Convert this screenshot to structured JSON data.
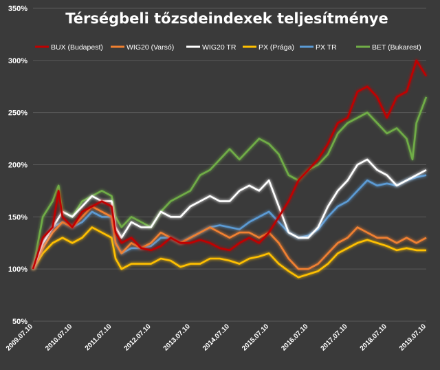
{
  "chart_data": {
    "type": "line",
    "title": "Térségbeli tőzsdeindexek teljesítménye",
    "xlabel": "",
    "ylabel": "",
    "ylim": [
      50,
      350
    ],
    "y_ticks": [
      "50%",
      "100%",
      "150%",
      "200%",
      "250%",
      "300%",
      "350%"
    ],
    "y_tick_values": [
      50,
      100,
      150,
      200,
      250,
      300,
      350
    ],
    "x_ticks": [
      "2009.07.10",
      "2010.07.10",
      "2011.07.10",
      "2012.07.10",
      "2013.07.10",
      "2014.07.10",
      "2015.07.10",
      "2016.07.10",
      "2017.07.10",
      "2018.07.10",
      "2019.07.10"
    ],
    "x_tick_values": [
      2009.5,
      2010.5,
      2011.5,
      2012.5,
      2013.5,
      2014.5,
      2015.5,
      2016.5,
      2017.5,
      2018.5,
      2019.5
    ],
    "xlim": [
      2009.5,
      2019.5
    ],
    "grid": true,
    "legend": "top",
    "series": [
      {
        "name": "BUX (Budapest)",
        "color": "#c00000",
        "x": [
          2009.5,
          2009.75,
          2010.0,
          2010.15,
          2010.25,
          2010.5,
          2010.75,
          2011.0,
          2011.25,
          2011.5,
          2011.6,
          2011.75,
          2012.0,
          2012.25,
          2012.5,
          2012.75,
          2013.0,
          2013.25,
          2013.5,
          2013.75,
          2014.0,
          2014.25,
          2014.5,
          2014.75,
          2015.0,
          2015.25,
          2015.5,
          2015.75,
          2016.0,
          2016.25,
          2016.5,
          2016.75,
          2017.0,
          2017.25,
          2017.5,
          2017.75,
          2018.0,
          2018.25,
          2018.5,
          2018.75,
          2019.0,
          2019.25,
          2019.5
        ],
        "y": [
          100,
          130,
          140,
          175,
          150,
          140,
          155,
          160,
          165,
          160,
          135,
          125,
          130,
          120,
          118,
          122,
          130,
          125,
          125,
          128,
          125,
          120,
          118,
          125,
          130,
          125,
          135,
          150,
          165,
          185,
          195,
          205,
          220,
          240,
          245,
          270,
          275,
          265,
          245,
          265,
          270,
          300,
          285
        ]
      },
      {
        "name": "WIG20 (Varsó)",
        "color": "#f08030",
        "x": [
          2009.5,
          2009.75,
          2010.0,
          2010.25,
          2010.5,
          2010.75,
          2011.0,
          2011.25,
          2011.5,
          2011.6,
          2011.75,
          2012.0,
          2012.25,
          2012.5,
          2012.75,
          2013.0,
          2013.25,
          2013.5,
          2013.75,
          2014.0,
          2014.25,
          2014.5,
          2014.75,
          2015.0,
          2015.25,
          2015.5,
          2015.75,
          2016.0,
          2016.25,
          2016.5,
          2016.75,
          2017.0,
          2017.25,
          2017.5,
          2017.75,
          2018.0,
          2018.25,
          2018.5,
          2018.75,
          2019.0,
          2019.25,
          2019.5
        ],
        "y": [
          100,
          120,
          135,
          145,
          140,
          150,
          160,
          155,
          150,
          125,
          115,
          125,
          120,
          125,
          135,
          130,
          125,
          130,
          135,
          140,
          135,
          130,
          135,
          135,
          130,
          135,
          125,
          110,
          100,
          100,
          105,
          115,
          125,
          130,
          140,
          135,
          130,
          130,
          125,
          130,
          125,
          130
        ]
      },
      {
        "name": "WIG20 TR",
        "color": "#ffffff",
        "x": [
          2009.5,
          2009.75,
          2010.0,
          2010.25,
          2010.5,
          2010.75,
          2011.0,
          2011.25,
          2011.5,
          2011.6,
          2011.75,
          2012.0,
          2012.25,
          2012.5,
          2012.75,
          2013.0,
          2013.25,
          2013.5,
          2013.75,
          2014.0,
          2014.25,
          2014.5,
          2014.75,
          2015.0,
          2015.25,
          2015.5,
          2015.75,
          2016.0,
          2016.25,
          2016.5,
          2016.75,
          2017.0,
          2017.25,
          2017.5,
          2017.75,
          2018.0,
          2018.25,
          2018.5,
          2018.75,
          2019.0,
          2019.25,
          2019.5
        ],
        "y": [
          100,
          125,
          140,
          155,
          150,
          160,
          170,
          165,
          165,
          140,
          130,
          145,
          140,
          140,
          155,
          150,
          150,
          160,
          165,
          170,
          165,
          165,
          175,
          180,
          175,
          185,
          160,
          135,
          130,
          130,
          140,
          160,
          175,
          185,
          200,
          205,
          195,
          190,
          180,
          185,
          190,
          195
        ]
      },
      {
        "name": "PX (Prága)",
        "color": "#ffc000",
        "x": [
          2009.5,
          2009.75,
          2010.0,
          2010.25,
          2010.5,
          2010.75,
          2011.0,
          2011.25,
          2011.5,
          2011.6,
          2011.75,
          2012.0,
          2012.25,
          2012.5,
          2012.75,
          2013.0,
          2013.25,
          2013.5,
          2013.75,
          2014.0,
          2014.25,
          2014.5,
          2014.75,
          2015.0,
          2015.25,
          2015.5,
          2015.75,
          2016.0,
          2016.25,
          2016.5,
          2016.75,
          2017.0,
          2017.25,
          2017.5,
          2017.75,
          2018.0,
          2018.25,
          2018.5,
          2018.75,
          2019.0,
          2019.25,
          2019.5
        ],
        "y": [
          100,
          115,
          125,
          130,
          125,
          130,
          140,
          135,
          130,
          110,
          100,
          105,
          105,
          105,
          110,
          108,
          102,
          105,
          105,
          110,
          110,
          108,
          105,
          110,
          112,
          115,
          105,
          98,
          92,
          95,
          98,
          105,
          115,
          120,
          125,
          128,
          125,
          122,
          118,
          120,
          118,
          118
        ]
      },
      {
        "name": "PX TR",
        "color": "#5b9bd5",
        "x": [
          2009.5,
          2009.75,
          2010.0,
          2010.25,
          2010.5,
          2010.75,
          2011.0,
          2011.25,
          2011.5,
          2011.6,
          2011.75,
          2012.0,
          2012.25,
          2012.5,
          2012.75,
          2013.0,
          2013.25,
          2013.5,
          2013.75,
          2014.0,
          2014.25,
          2014.5,
          2014.75,
          2015.0,
          2015.25,
          2015.5,
          2015.75,
          2016.0,
          2016.25,
          2016.5,
          2016.75,
          2017.0,
          2017.25,
          2017.5,
          2017.75,
          2018.0,
          2018.25,
          2018.5,
          2018.75,
          2019.0,
          2019.25,
          2019.5
        ],
        "y": [
          100,
          125,
          140,
          145,
          140,
          145,
          155,
          150,
          150,
          125,
          115,
          120,
          120,
          122,
          130,
          130,
          125,
          130,
          135,
          140,
          142,
          140,
          138,
          145,
          150,
          155,
          145,
          135,
          130,
          132,
          138,
          150,
          160,
          165,
          175,
          185,
          180,
          182,
          180,
          185,
          188,
          190
        ]
      },
      {
        "name": "BET (Bukarest)",
        "color": "#70ad47",
        "x": [
          2009.5,
          2009.75,
          2010.0,
          2010.15,
          2010.25,
          2010.5,
          2010.75,
          2011.0,
          2011.25,
          2011.5,
          2011.6,
          2011.75,
          2012.0,
          2012.25,
          2012.5,
          2012.75,
          2013.0,
          2013.25,
          2013.5,
          2013.75,
          2014.0,
          2014.25,
          2014.5,
          2014.75,
          2015.0,
          2015.25,
          2015.5,
          2015.75,
          2016.0,
          2016.25,
          2016.5,
          2016.75,
          2017.0,
          2017.25,
          2017.5,
          2017.75,
          2018.0,
          2018.25,
          2018.5,
          2018.75,
          2019.0,
          2019.15,
          2019.25,
          2019.5
        ],
        "y": [
          100,
          150,
          165,
          180,
          155,
          150,
          165,
          170,
          175,
          170,
          150,
          140,
          150,
          145,
          140,
          155,
          165,
          170,
          175,
          190,
          195,
          205,
          215,
          205,
          215,
          225,
          220,
          210,
          190,
          185,
          195,
          200,
          210,
          230,
          240,
          245,
          250,
          240,
          230,
          235,
          225,
          205,
          240,
          265
        ]
      }
    ]
  }
}
